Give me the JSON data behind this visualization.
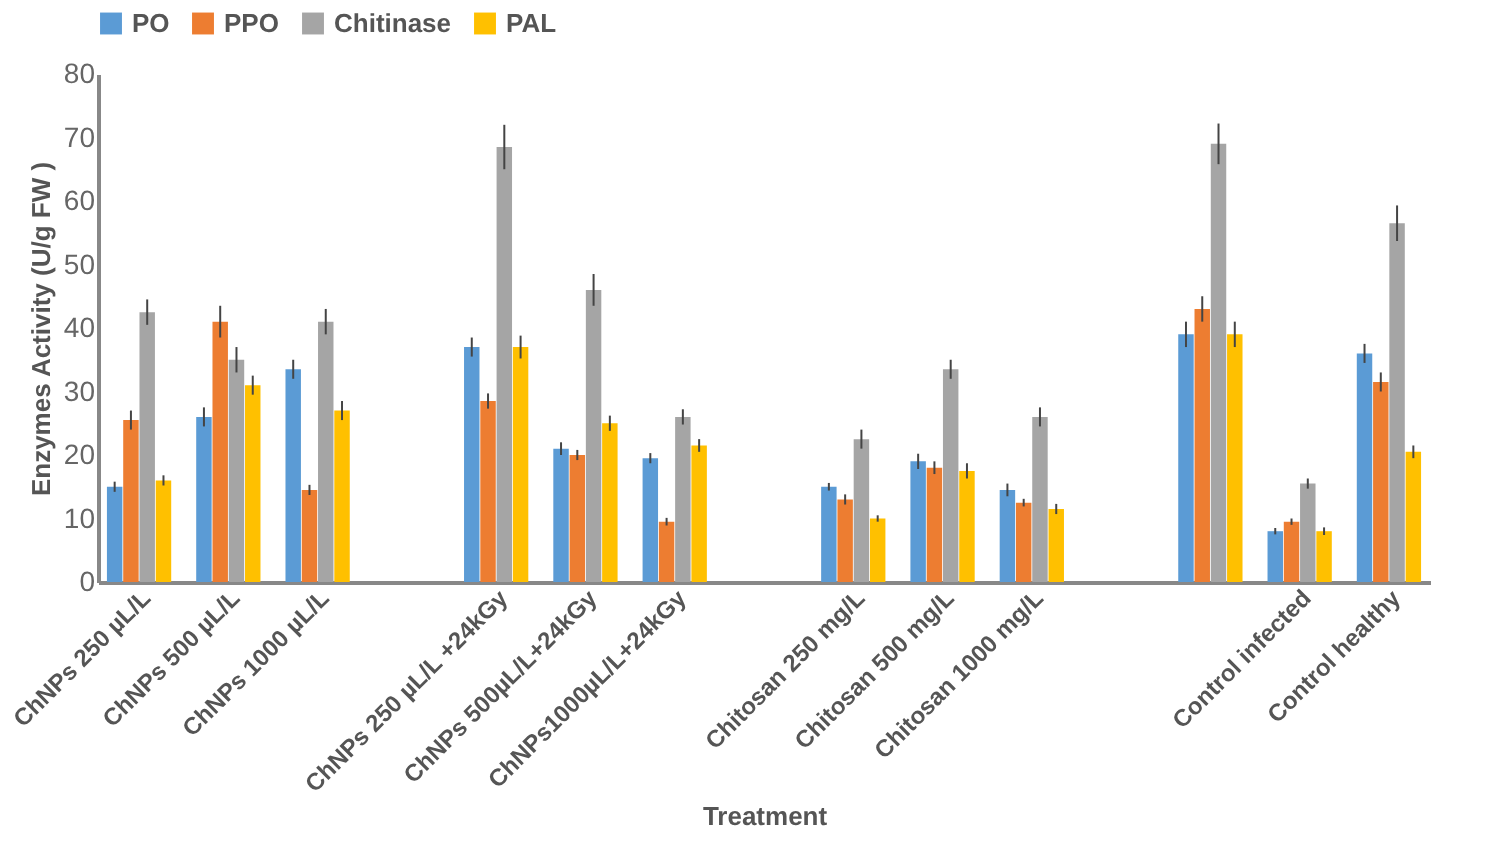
{
  "chart_data": {
    "type": "bar",
    "xlabel": "Treatment",
    "ylabel": "Enzymes Activity (U/g FW  )",
    "categories": [
      "ChNPs 250 µL/L",
      "ChNPs 500 µL/L",
      "ChNPs 1000 µL/L",
      null,
      "ChNPs 250 µL/L +24kGy",
      "ChNPs 500µL/L+24kGy",
      "ChNPs1000µL/L+24kGy",
      null,
      "Chitosan 250 mg/L",
      "Chitosan 500 mg/L",
      "Chitosan 1000 mg/L",
      null,
      null,
      "Control infected",
      "Control healthy"
    ],
    "series": [
      {
        "name": "PO",
        "color": "#5b9bd5",
        "values": [
          15,
          26,
          33.5,
          null,
          37,
          21,
          19.5,
          null,
          15,
          19,
          14.5,
          null,
          39,
          8,
          36
        ],
        "errors": [
          0.8,
          1.5,
          1.5,
          null,
          1.5,
          1,
          0.8,
          null,
          0.6,
          1.2,
          1,
          null,
          2,
          0.5,
          1.5
        ]
      },
      {
        "name": "PPO",
        "color": "#ed7d31",
        "values": [
          25.5,
          41,
          14.5,
          null,
          28.5,
          20,
          9.5,
          null,
          13,
          18,
          12.5,
          null,
          43,
          9.5,
          31.5
        ],
        "errors": [
          1.5,
          2.5,
          0.8,
          null,
          1.2,
          0.8,
          0.6,
          null,
          0.8,
          1,
          0.6,
          null,
          2,
          0.5,
          1.5
        ]
      },
      {
        "name": "Chitinase",
        "color": "#a5a5a5",
        "values": [
          42.5,
          35,
          41,
          null,
          68.5,
          46,
          26,
          null,
          22.5,
          33.5,
          26,
          null,
          69,
          15.5,
          56.5
        ],
        "errors": [
          2,
          2,
          2,
          null,
          3.5,
          2.5,
          1.2,
          null,
          1.5,
          1.5,
          1.5,
          null,
          3.2,
          0.8,
          2.8
        ]
      },
      {
        "name": "PAL",
        "color": "#ffc000",
        "values": [
          16,
          31,
          27,
          null,
          37,
          25,
          21.5,
          null,
          10,
          17.5,
          11.5,
          null,
          39,
          8,
          20.5
        ],
        "errors": [
          0.8,
          1.5,
          1.5,
          null,
          1.8,
          1.2,
          1,
          null,
          0.5,
          1.2,
          0.8,
          null,
          2,
          0.6,
          1
        ]
      }
    ],
    "ylim": [
      0,
      80
    ],
    "yticks": [
      0,
      10,
      20,
      30,
      40,
      50,
      60,
      70,
      80
    ],
    "grid": false,
    "legend": "top"
  }
}
